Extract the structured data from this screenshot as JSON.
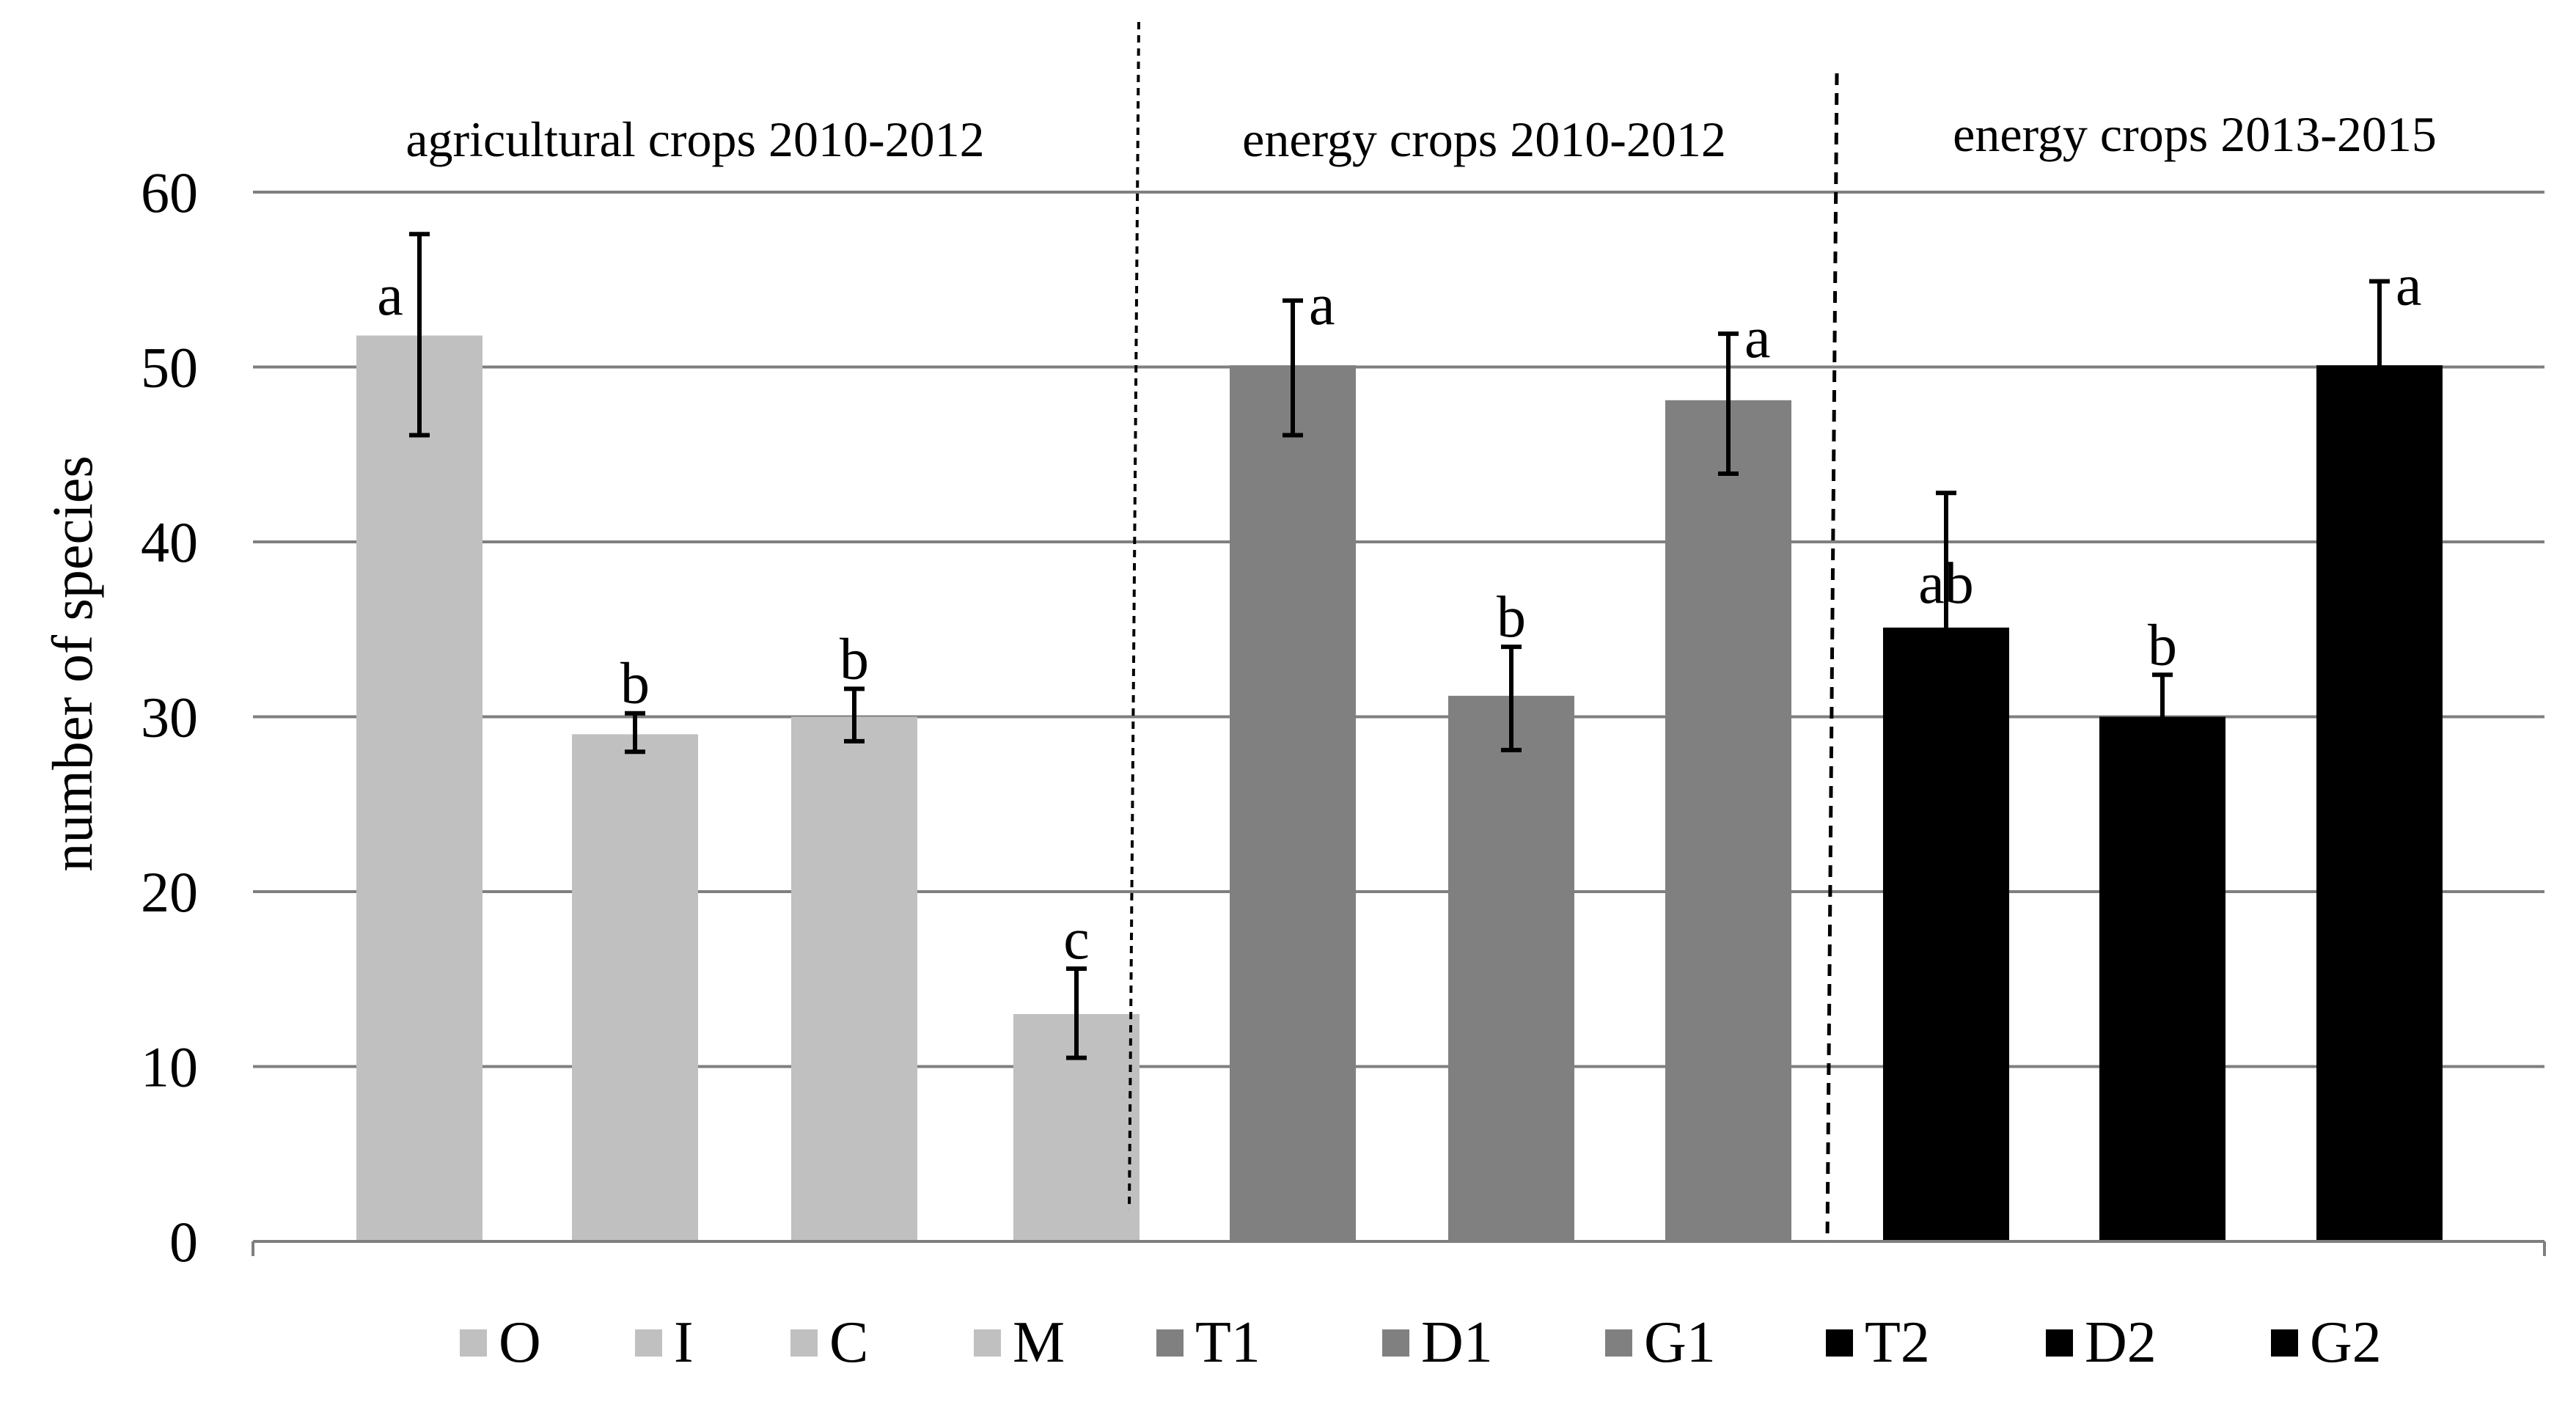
{
  "chart_data": {
    "type": "bar",
    "ylabel": "number  of species",
    "ylim": [
      0,
      60
    ],
    "yticks": [
      0,
      10,
      20,
      30,
      40,
      50,
      60
    ],
    "grid": true,
    "groups": [
      {
        "label": "agricultural crops 2010-2012",
        "categories": [
          "O",
          "I",
          "C",
          "M"
        ],
        "color": "#c0c0c0"
      },
      {
        "label": "energy crops 2010-2012",
        "categories": [
          "T1",
          "D1",
          "G1"
        ],
        "color": "#808080"
      },
      {
        "label": "energy crops 2013-2015",
        "categories": [
          "T2",
          "D2",
          "G2"
        ],
        "color": "#000000"
      }
    ],
    "bars": [
      {
        "name": "O",
        "value": 51.8,
        "err_low": 46.1,
        "err_high": 57.6,
        "letter": "a",
        "color": "#c0c0c0"
      },
      {
        "name": "I",
        "value": 29.0,
        "err_low": 28.0,
        "err_high": 30.2,
        "letter": "b",
        "color": "#c0c0c0"
      },
      {
        "name": "C",
        "value": 30.0,
        "err_low": 28.6,
        "err_high": 31.6,
        "letter": "b",
        "color": "#c0c0c0"
      },
      {
        "name": "M",
        "value": 13.0,
        "err_low": 10.5,
        "err_high": 15.6,
        "letter": "c",
        "color": "#c0c0c0"
      },
      {
        "name": "T1",
        "value": 50.1,
        "err_low": 46.1,
        "err_high": 53.8,
        "letter": "a",
        "color": "#808080"
      },
      {
        "name": "D1",
        "value": 31.2,
        "err_low": 28.1,
        "err_high": 34.0,
        "letter": "b",
        "color": "#808080"
      },
      {
        "name": "G1",
        "value": 48.1,
        "err_low": 43.9,
        "err_high": 51.9,
        "letter": "a",
        "color": "#808080"
      },
      {
        "name": "T2",
        "value": 35.1,
        "err_low": 27.4,
        "err_high": 42.8,
        "letter": "ab",
        "color": "#000000"
      },
      {
        "name": "D2",
        "value": 30.0,
        "err_low": 27.9,
        "err_high": 32.4,
        "letter": "b",
        "color": "#000000"
      },
      {
        "name": "G2",
        "value": 50.1,
        "err_low": 45.0,
        "err_high": 54.9,
        "letter": "a",
        "color": "#000000"
      }
    ],
    "legend": [
      {
        "label": "O",
        "color": "#c0c0c0"
      },
      {
        "label": "I",
        "color": "#c0c0c0"
      },
      {
        "label": "C",
        "color": "#c0c0c0"
      },
      {
        "label": "M",
        "color": "#c0c0c0"
      },
      {
        "label": "T1",
        "color": "#808080"
      },
      {
        "label": "D1",
        "color": "#808080"
      },
      {
        "label": "G1",
        "color": "#808080"
      },
      {
        "label": "T2",
        "color": "#000000"
      },
      {
        "label": "D2",
        "color": "#000000"
      },
      {
        "label": "G2",
        "color": "#000000"
      }
    ]
  }
}
